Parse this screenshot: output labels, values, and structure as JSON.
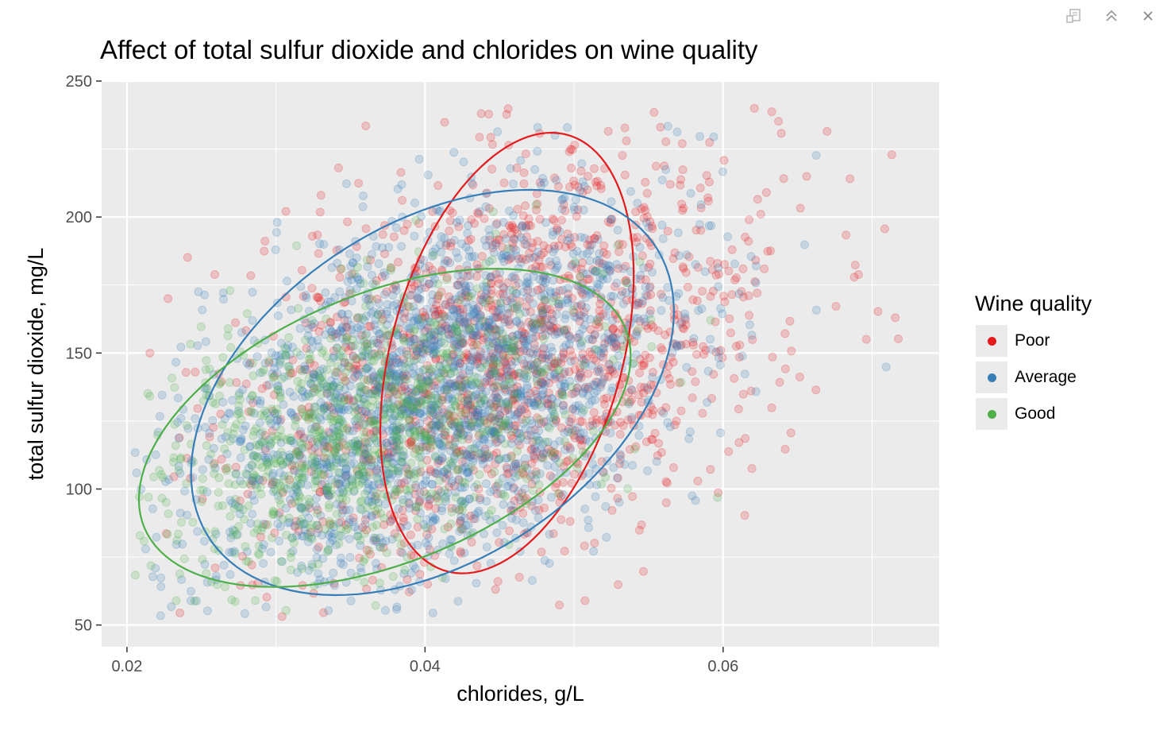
{
  "window": {
    "controls": [
      {
        "name": "popout-icon"
      },
      {
        "name": "collapse-icon"
      },
      {
        "name": "close-icon"
      }
    ]
  },
  "colors": {
    "panel": "#ebebeb",
    "grid": "#ffffff",
    "Poor": "#e41a1c",
    "Average": "#377eb8",
    "Good": "#4daf4a"
  },
  "chart_data": {
    "type": "scatter",
    "title": "Affect of total sulfur dioxide and chlorides on wine quality",
    "xlabel": "chlorides, g/L",
    "ylabel": "total sulfur dioxide, mg/L",
    "xlim": [
      0.0183,
      0.0745
    ],
    "ylim": [
      42,
      250
    ],
    "x_ticks": [
      0.02,
      0.04,
      0.06
    ],
    "x_tick_labels": [
      "0.02",
      "0.04",
      "0.06"
    ],
    "y_ticks": [
      50,
      100,
      150,
      200,
      250
    ],
    "y_tick_labels": [
      "50",
      "100",
      "150",
      "200",
      "250"
    ],
    "grid": true,
    "legend": {
      "title": "Wine quality",
      "placement": "right",
      "entries": [
        "Poor",
        "Average",
        "Good"
      ]
    },
    "point_alpha": 0.2,
    "series": [
      {
        "name": "Poor",
        "points_shown": 1500,
        "center": [
          0.0456,
          148
        ],
        "spread": [
          0.0089,
          38
        ],
        "correlation": 0.35,
        "ellipse": {
          "center": [
            0.0455,
            150
          ],
          "rx": 0.0085,
          "ry": 81,
          "correlation": 0.35
        }
      },
      {
        "name": "Average",
        "points_shown": 2200,
        "center": [
          0.0407,
          136
        ],
        "spread": [
          0.0081,
          34
        ],
        "correlation": 0.4,
        "ellipse": {
          "center": [
            0.0405,
            135.5
          ],
          "rx": 0.0162,
          "ry": 74.5,
          "correlation": 0.4
        }
      },
      {
        "name": "Good",
        "points_shown": 1000,
        "center": [
          0.0363,
          122
        ],
        "spread": [
          0.0074,
          27
        ],
        "correlation": 0.45,
        "ellipse": {
          "center": [
            0.0373,
            122.5
          ],
          "rx": 0.0165,
          "ry": 58.5,
          "correlation": 0.45
        }
      }
    ]
  }
}
